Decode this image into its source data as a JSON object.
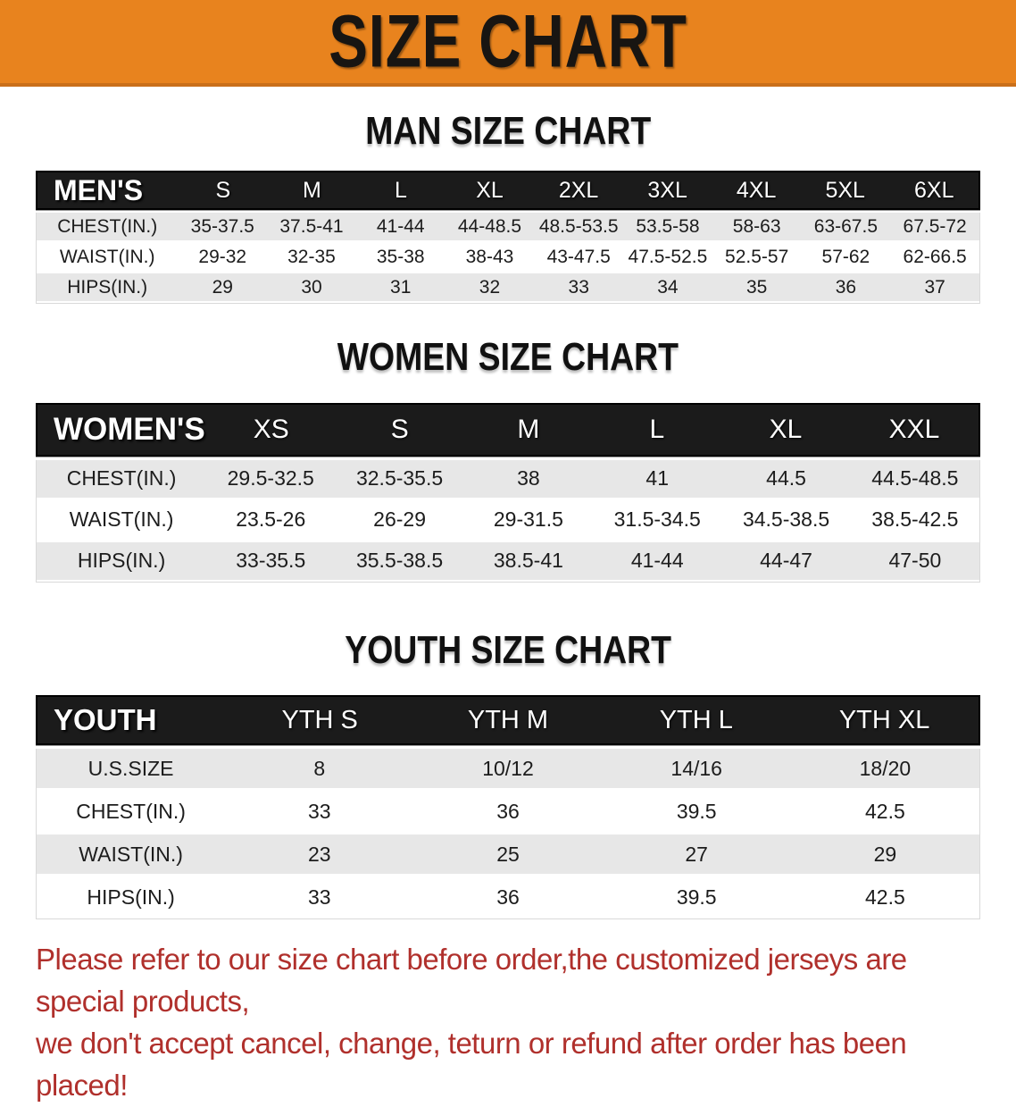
{
  "colors": {
    "banner_bg": "#E8831E",
    "banner_text": "#181512",
    "table_header_bg": "#1B1B1B",
    "row_stripe": "#E7E7E7",
    "disclaimer_text": "#B0302C"
  },
  "banner": {
    "title": "SIZE CHART"
  },
  "sections": [
    {
      "title": "MAN SIZE CHART",
      "table": {
        "label": "MEN'S",
        "columns": [
          "S",
          "M",
          "L",
          "XL",
          "2XL",
          "3XL",
          "4XL",
          "5XL",
          "6XL"
        ],
        "rows": [
          {
            "label": "CHEST(IN.)",
            "values": [
              "35-37.5",
              "37.5-41",
              "41-44",
              "44-48.5",
              "48.5-53.5",
              "53.5-58",
              "58-63",
              "63-67.5",
              "67.5-72"
            ]
          },
          {
            "label": "WAIST(IN.)",
            "values": [
              "29-32",
              "32-35",
              "35-38",
              "38-43",
              "43-47.5",
              "47.5-52.5",
              "52.5-57",
              "57-62",
              "62-66.5"
            ]
          },
          {
            "label": "HIPS(IN.)",
            "values": [
              "29",
              "30",
              "31",
              "32",
              "33",
              "34",
              "35",
              "36",
              "37"
            ]
          }
        ]
      }
    },
    {
      "title": "WOMEN SIZE CHART",
      "table": {
        "label": "WOMEN'S",
        "columns": [
          "XS",
          "S",
          "M",
          "L",
          "XL",
          "XXL"
        ],
        "rows": [
          {
            "label": "CHEST(IN.)",
            "values": [
              "29.5-32.5",
              "32.5-35.5",
              "38",
              "41",
              "44.5",
              "44.5-48.5"
            ]
          },
          {
            "label": "WAIST(IN.)",
            "values": [
              "23.5-26",
              "26-29",
              "29-31.5",
              "31.5-34.5",
              "34.5-38.5",
              "38.5-42.5"
            ]
          },
          {
            "label": "HIPS(IN.)",
            "values": [
              "33-35.5",
              "35.5-38.5",
              "38.5-41",
              "41-44",
              "44-47",
              "47-50"
            ]
          }
        ]
      }
    },
    {
      "title": "YOUTH SIZE CHART",
      "table": {
        "label": "YOUTH",
        "columns": [
          "YTH S",
          "YTH M",
          "YTH L",
          "YTH XL"
        ],
        "rows": [
          {
            "label": "U.S.SIZE",
            "values": [
              "8",
              "10/12",
              "14/16",
              "18/20"
            ]
          },
          {
            "label": "CHEST(IN.)",
            "values": [
              "33",
              "36",
              "39.5",
              "42.5"
            ]
          },
          {
            "label": "WAIST(IN.)",
            "values": [
              "23",
              "25",
              "27",
              "29"
            ]
          },
          {
            "label": "HIPS(IN.)",
            "values": [
              "33",
              "36",
              "39.5",
              "42.5"
            ]
          }
        ]
      }
    }
  ],
  "disclaimer": {
    "lines": [
      "Please refer to our size chart before order,the customized jerseys are special products,",
      "we don't accept cancel, change, teturn or refund after order has been placed!"
    ]
  }
}
